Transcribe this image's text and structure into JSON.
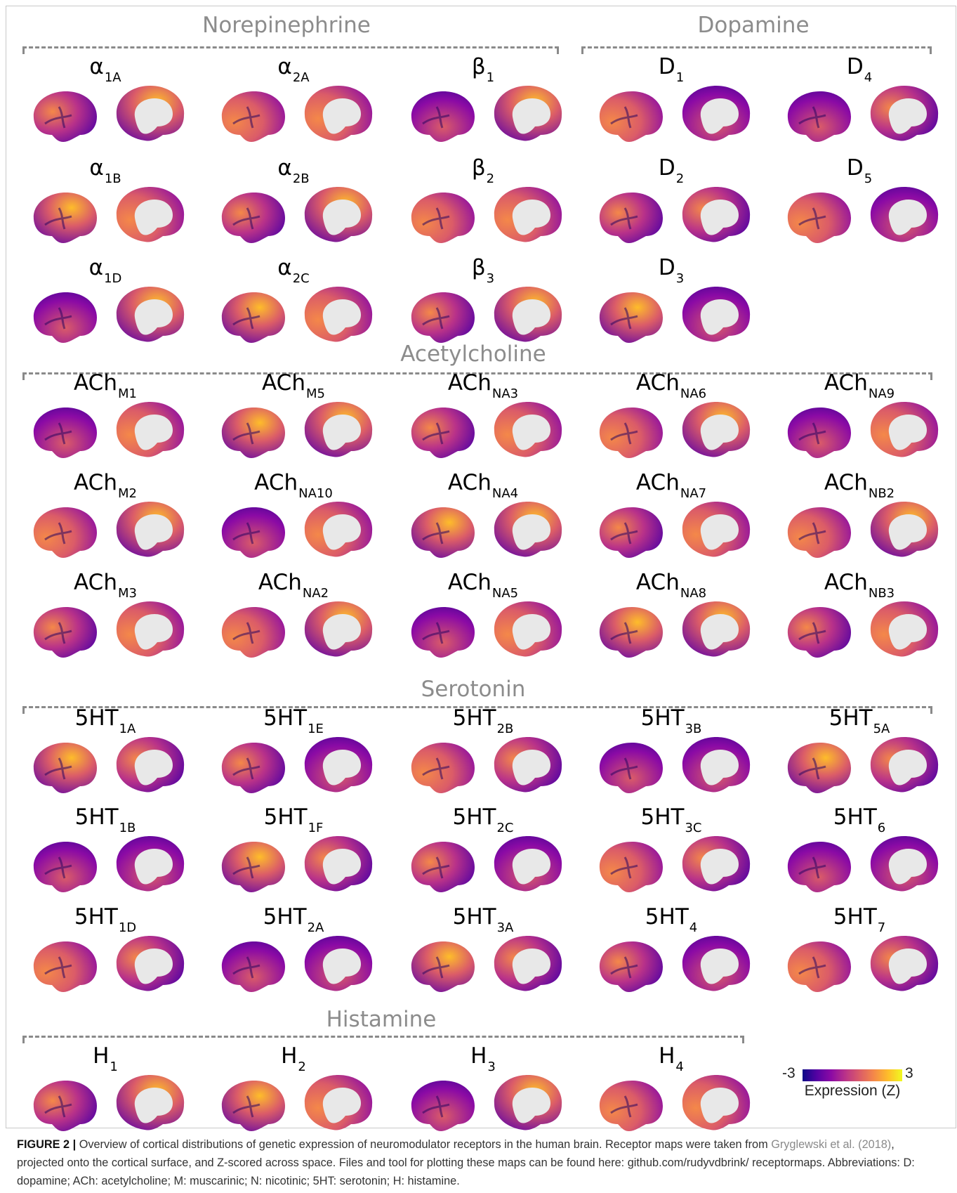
{
  "figure": {
    "groups": [
      {
        "title": "Norepinephrine",
        "panels": [
          {
            "base": "α",
            "sub": "1A"
          },
          {
            "base": "α",
            "sub": "1B"
          },
          {
            "base": "α",
            "sub": "1D"
          },
          {
            "base": "α",
            "sub": "2A"
          },
          {
            "base": "α",
            "sub": "2B"
          },
          {
            "base": "α",
            "sub": "2C"
          },
          {
            "base": "β",
            "sub": "1"
          },
          {
            "base": "β",
            "sub": "2"
          },
          {
            "base": "β",
            "sub": "3"
          }
        ]
      },
      {
        "title": "Dopamine",
        "panels": [
          {
            "base": "D",
            "sub": "1"
          },
          {
            "base": "D",
            "sub": "2"
          },
          {
            "base": "D",
            "sub": "3"
          },
          {
            "base": "D",
            "sub": "4"
          },
          {
            "base": "D",
            "sub": "5"
          }
        ]
      },
      {
        "title": "Acetylcholine",
        "panels": [
          {
            "base": "ACh",
            "sub": "M1"
          },
          {
            "base": "ACh",
            "sub": "M2"
          },
          {
            "base": "ACh",
            "sub": "M3"
          },
          {
            "base": "ACh",
            "sub": "M5"
          },
          {
            "base": "ACh",
            "sub": "NA10"
          },
          {
            "base": "ACh",
            "sub": "NA2"
          },
          {
            "base": "ACh",
            "sub": "NA3"
          },
          {
            "base": "ACh",
            "sub": "NA4"
          },
          {
            "base": "ACh",
            "sub": "NA5"
          },
          {
            "base": "ACh",
            "sub": "NA6"
          },
          {
            "base": "ACh",
            "sub": "NA7"
          },
          {
            "base": "ACh",
            "sub": "NA8"
          },
          {
            "base": "ACh",
            "sub": "NA9"
          },
          {
            "base": "ACh",
            "sub": "NB2"
          },
          {
            "base": "ACh",
            "sub": "NB3"
          }
        ]
      },
      {
        "title": "Serotonin",
        "panels": [
          {
            "base": "5HT",
            "sub": "1A"
          },
          {
            "base": "5HT",
            "sub": "1B"
          },
          {
            "base": "5HT",
            "sub": "1D"
          },
          {
            "base": "5HT",
            "sub": "1E"
          },
          {
            "base": "5HT",
            "sub": "1F"
          },
          {
            "base": "5HT",
            "sub": "2A"
          },
          {
            "base": "5HT",
            "sub": "2B"
          },
          {
            "base": "5HT",
            "sub": "2C"
          },
          {
            "base": "5HT",
            "sub": "3A"
          },
          {
            "base": "5HT",
            "sub": "3B"
          },
          {
            "base": "5HT",
            "sub": "3C"
          },
          {
            "base": "5HT",
            "sub": "4"
          },
          {
            "base": "5HT",
            "sub": "5A"
          },
          {
            "base": "5HT",
            "sub": "6"
          },
          {
            "base": "5HT",
            "sub": "7"
          }
        ]
      },
      {
        "title": "Histamine",
        "panels": [
          {
            "base": "H",
            "sub": "1"
          },
          {
            "base": "H",
            "sub": "2"
          },
          {
            "base": "H",
            "sub": "3"
          },
          {
            "base": "H",
            "sub": "4"
          }
        ]
      }
    ],
    "colorbar": {
      "min": "-3",
      "max": "3",
      "label": "Expression (Z)",
      "colors": [
        "#0d0887",
        "#5402a3",
        "#8b0aa5",
        "#b93289",
        "#db5c68",
        "#f48849",
        "#febd2a",
        "#f0f921"
      ]
    },
    "colors": {
      "group_title": "#8c8c8c",
      "bracket": "#8a8a8a",
      "medial_wall": "#e8e8e8"
    }
  },
  "caption": {
    "figure_number": "FIGURE 2 |",
    "text_before": " Overview of cortical distributions of genetic expression of neuromodulator receptors in the human brain. Receptor maps were taken from ",
    "citation": "Gryglewski et al. (2018)",
    "text_after": ", projected onto the cortical surface, and Z-scored across space. Files and tool for plotting these maps can be found here: github.com/rudyvdbrink/ receptormaps. Abbreviations: D: dopamine; ACh: acetylcholine; M: muscarinic; N: nicotinic; 5HT: serotonin; H: histamine."
  }
}
